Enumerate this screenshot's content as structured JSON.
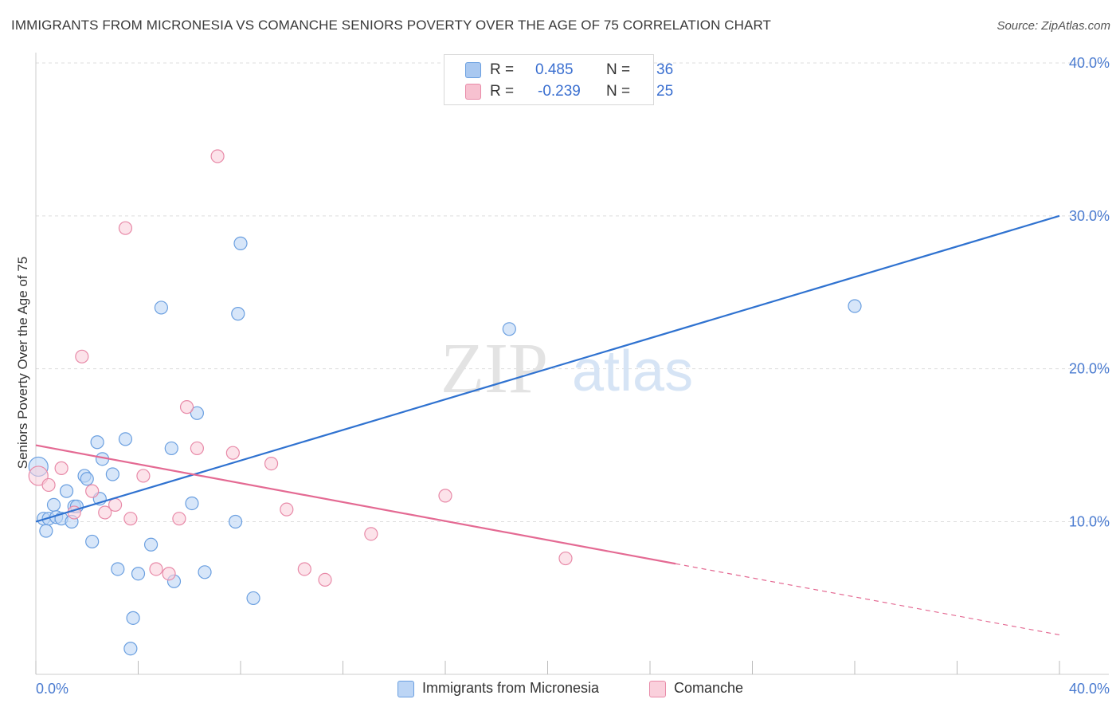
{
  "title": "IMMIGRANTS FROM MICRONESIA VS COMANCHE SENIORS POVERTY OVER THE AGE OF 75 CORRELATION CHART",
  "source": "Source: ZipAtlas.com",
  "watermark": {
    "zip": "ZIP",
    "atlas": "atlas"
  },
  "legend": {
    "rows": [
      {
        "r_label": "R =",
        "r_value": "0.485",
        "n_label": "N =",
        "n_value": "36",
        "color": "#a9c8f0",
        "border": "#6a9fe0"
      },
      {
        "r_label": "R =",
        "r_value": "-0.239",
        "n_label": "N =",
        "n_value": "25",
        "color": "#f7c1d0",
        "border": "#e88aa8"
      }
    ]
  },
  "bottom_legend": [
    {
      "label": "Immigrants from Micronesia",
      "color": "#bcd5f5",
      "border": "#6a9fe0"
    },
    {
      "label": "Comanche",
      "color": "#fad0dc",
      "border": "#e88aa8"
    }
  ],
  "chart_data": {
    "type": "scatter",
    "title": "IMMIGRANTS FROM MICRONESIA VS COMANCHE SENIORS POVERTY OVER THE AGE OF 75 CORRELATION CHART",
    "xlabel": "",
    "ylabel": "Seniors Poverty Over the Age of 75",
    "xlim": [
      0,
      40
    ],
    "ylim": [
      0,
      40
    ],
    "x_tick_labels": [
      "0.0%",
      "40.0%"
    ],
    "y_ticks": [
      {
        "value": 10,
        "label": "10.0%"
      },
      {
        "value": 20,
        "label": "20.0%"
      },
      {
        "value": 30,
        "label": "30.0%"
      },
      {
        "value": 40,
        "label": "40.0%"
      }
    ],
    "grid": true,
    "series": [
      {
        "name": "Immigrants from Micronesia",
        "color": "#6a9fe0",
        "fill": "#bcd5f5",
        "points": [
          [
            0.1,
            13.6
          ],
          [
            0.3,
            10.2
          ],
          [
            0.4,
            9.4
          ],
          [
            0.5,
            10.2
          ],
          [
            0.7,
            11.1
          ],
          [
            0.8,
            10.3
          ],
          [
            1.0,
            10.2
          ],
          [
            1.2,
            12.0
          ],
          [
            1.4,
            10.0
          ],
          [
            1.5,
            11.0
          ],
          [
            1.6,
            11.0
          ],
          [
            1.9,
            13.0
          ],
          [
            2.0,
            12.8
          ],
          [
            2.2,
            8.7
          ],
          [
            2.4,
            15.2
          ],
          [
            2.5,
            11.5
          ],
          [
            2.6,
            14.1
          ],
          [
            3.0,
            13.1
          ],
          [
            3.2,
            6.9
          ],
          [
            3.5,
            15.4
          ],
          [
            3.8,
            3.7
          ],
          [
            3.7,
            1.7
          ],
          [
            4.0,
            6.6
          ],
          [
            4.5,
            8.5
          ],
          [
            4.9,
            24.0
          ],
          [
            5.3,
            14.8
          ],
          [
            5.4,
            6.1
          ],
          [
            6.1,
            11.2
          ],
          [
            6.3,
            17.1
          ],
          [
            6.6,
            6.7
          ],
          [
            7.8,
            10.0
          ],
          [
            7.9,
            23.6
          ],
          [
            8.0,
            28.2
          ],
          [
            8.5,
            5.0
          ],
          [
            18.5,
            22.6
          ],
          [
            32.0,
            24.1
          ]
        ],
        "trend": {
          "x": [
            0,
            40
          ],
          "y": [
            10.0,
            30.0
          ],
          "dash_from": null
        }
      },
      {
        "name": "Comanche",
        "color": "#e88aa8",
        "fill": "#fad0dc",
        "points": [
          [
            0.1,
            13.0
          ],
          [
            0.5,
            12.4
          ],
          [
            1.0,
            13.5
          ],
          [
            1.5,
            10.6
          ],
          [
            1.8,
            20.8
          ],
          [
            2.2,
            12.0
          ],
          [
            2.7,
            10.6
          ],
          [
            3.1,
            11.1
          ],
          [
            3.5,
            29.2
          ],
          [
            3.7,
            10.2
          ],
          [
            4.2,
            13.0
          ],
          [
            4.7,
            6.9
          ],
          [
            5.2,
            6.6
          ],
          [
            5.6,
            10.2
          ],
          [
            5.9,
            17.5
          ],
          [
            6.3,
            14.8
          ],
          [
            7.1,
            33.9
          ],
          [
            7.7,
            14.5
          ],
          [
            9.2,
            13.8
          ],
          [
            9.8,
            10.8
          ],
          [
            10.5,
            6.9
          ],
          [
            11.3,
            6.2
          ],
          [
            13.1,
            9.2
          ],
          [
            16.0,
            11.7
          ],
          [
            20.7,
            7.6
          ]
        ],
        "trend": {
          "x": [
            0,
            40
          ],
          "y": [
            15.0,
            2.6
          ],
          "dash_from": 25.0
        }
      }
    ]
  }
}
